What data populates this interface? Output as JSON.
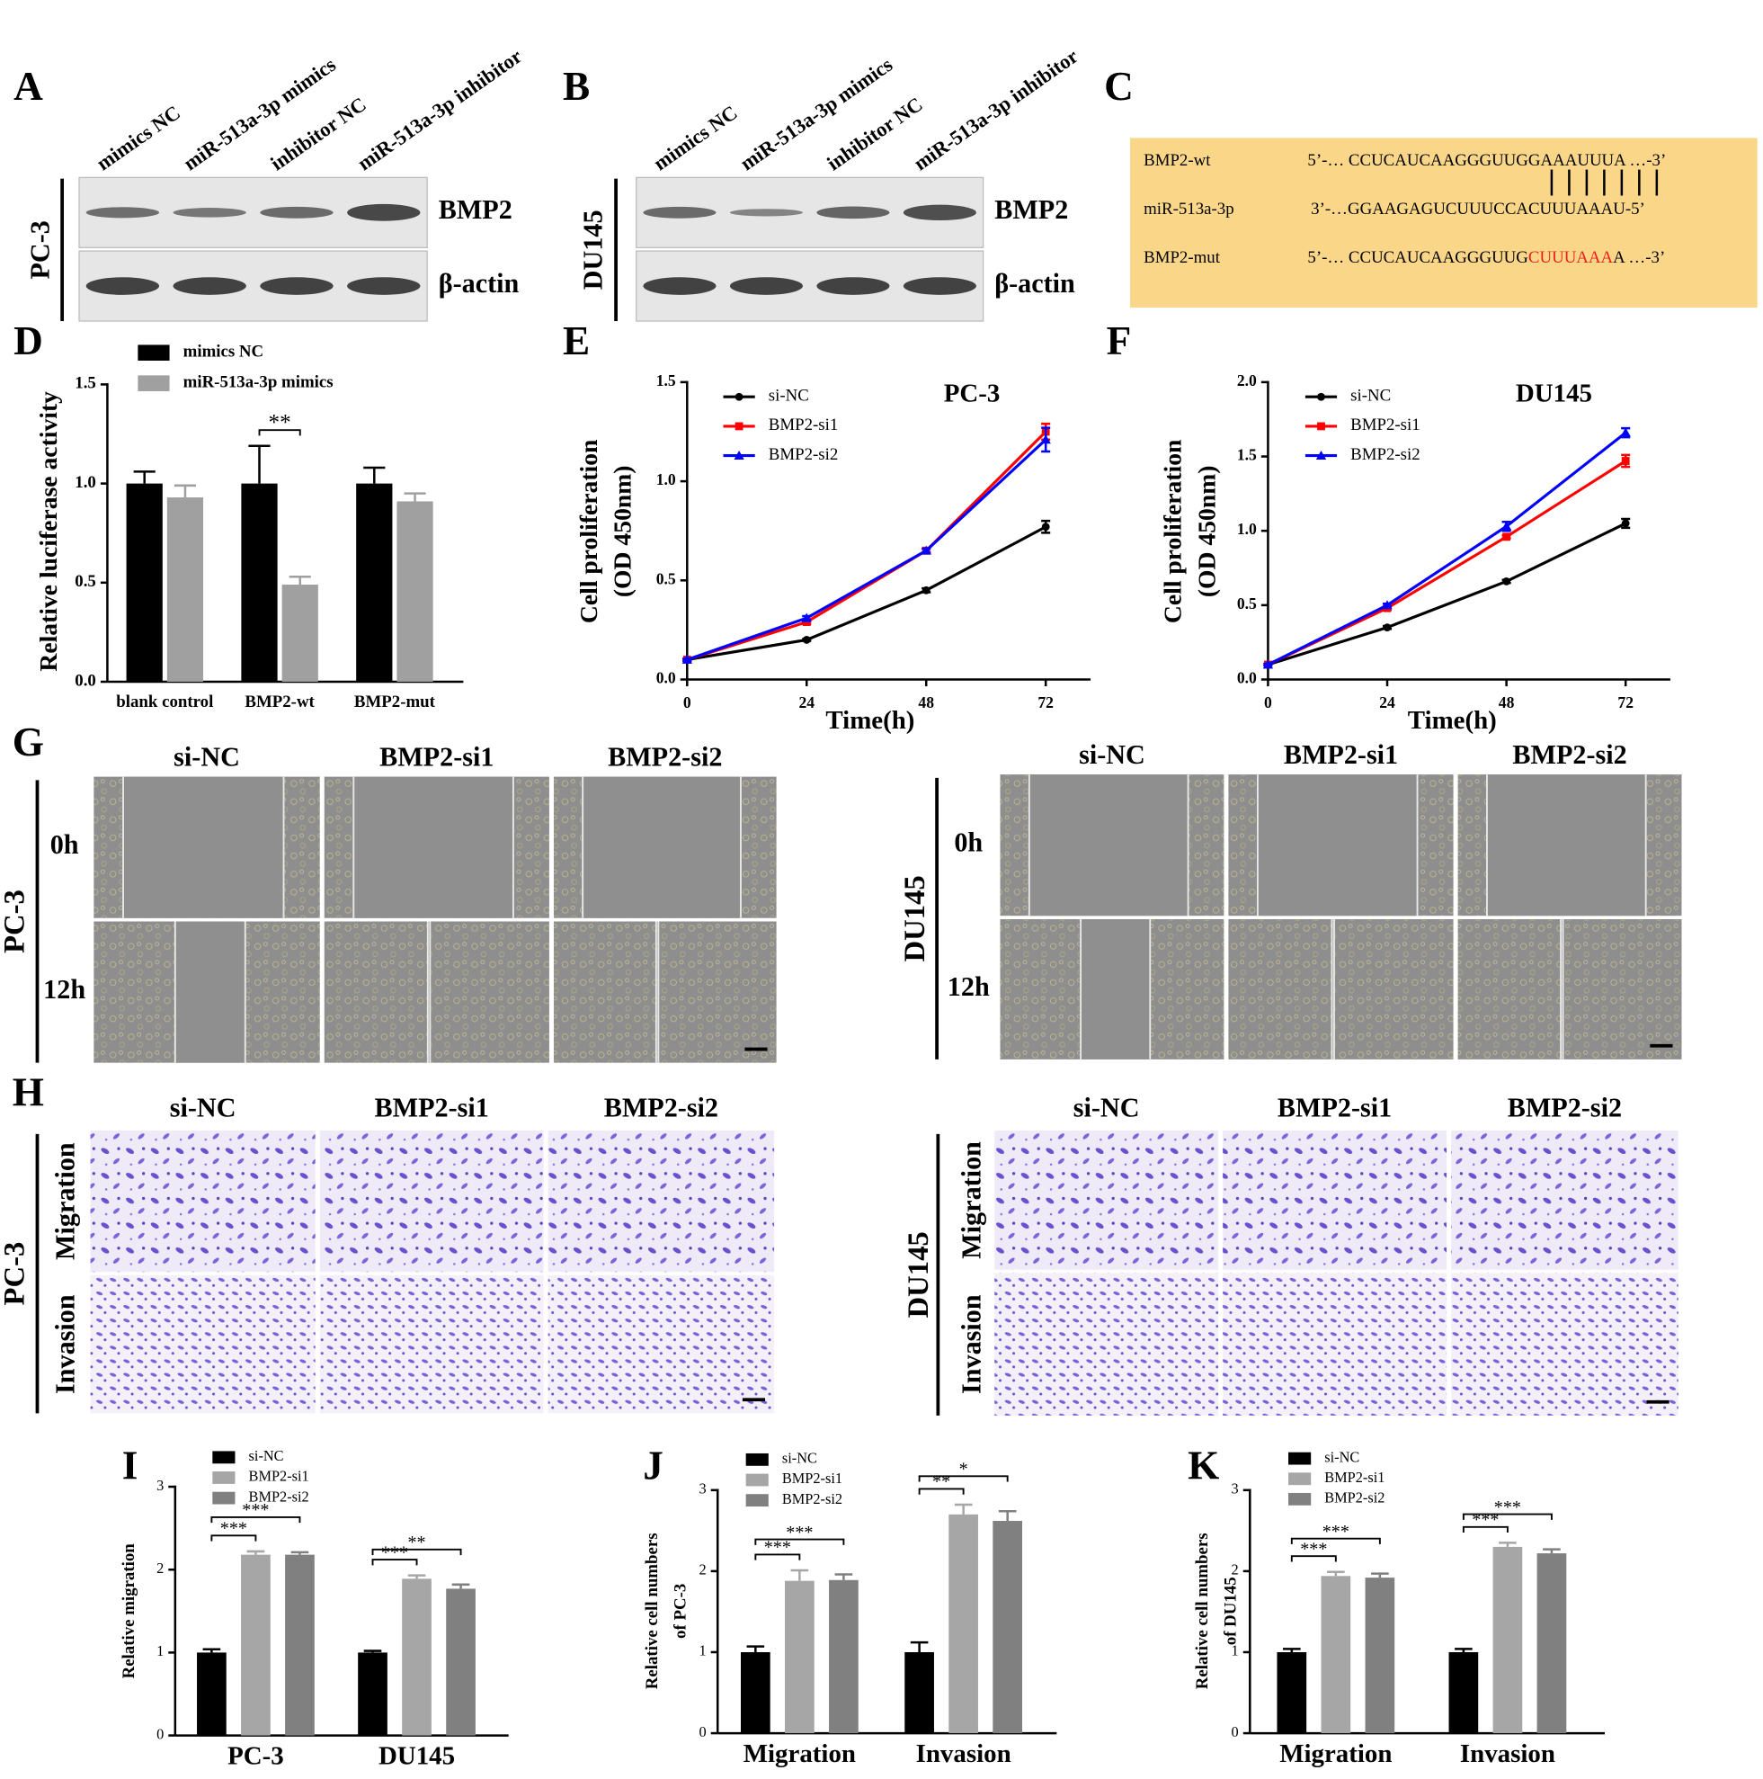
{
  "panel_labels": [
    "A",
    "B",
    "C",
    "D",
    "E",
    "F",
    "G",
    "H",
    "I",
    "J",
    "K"
  ],
  "blots": [
    {
      "cell_line": "PC-3",
      "lanes": [
        "mimics NC",
        "miR-513a-3p mimics",
        "inhibitor NC",
        "miR-513a-3p inhibitor"
      ],
      "proteins": [
        "BMP2",
        "β-actin"
      ]
    },
    {
      "cell_line": "DU145",
      "lanes": [
        "mimics NC",
        "miR-513a-3p mimics",
        "inhibitor NC",
        "miR-513a-3p inhibitor"
      ],
      "proteins": [
        "BMP2",
        "β-actin"
      ]
    }
  ],
  "sequence": {
    "rows": [
      {
        "name": "BMP2-wt",
        "seq": "5’-… CCUCAUCAAGGGUUGGAAAUUUA …-3’"
      },
      {
        "name": "miR-513a-3p",
        "seq": "3’-…GGAAGAGUCUUUCCACUUUAAAU-5’"
      },
      {
        "name": "BMP2-mut",
        "seq": "5’-… CCUCAUCAAGGGUUG",
        "highlight": "CUUUAAA",
        "seq_end": "A …-3’"
      }
    ]
  },
  "wound": {
    "columns": [
      "si-NC",
      "BMP2-si1",
      "BMP2-si2"
    ],
    "rows": [
      "0h",
      "12h"
    ],
    "cell_lines": [
      "PC-3",
      "DU145"
    ]
  },
  "transwell": {
    "columns": [
      "si-NC",
      "BMP2-si1",
      "BMP2-si2"
    ],
    "rows": [
      "Migration",
      "Invasion"
    ],
    "cell_lines": [
      "PC-3",
      "DU145"
    ]
  },
  "chart_data": [
    {
      "type": "bar",
      "ylabel": "Relative luciferase activity",
      "categories": [
        "blank control",
        "BMP2-wt",
        "BMP2-mut"
      ],
      "series": [
        {
          "name": "mimics NC",
          "color": "#000000",
          "values": [
            1.0,
            1.0,
            1.0
          ],
          "errors": [
            0.06,
            0.19,
            0.08
          ]
        },
        {
          "name": "miR-513a-3p mimics",
          "color": "#a0a0a0",
          "values": [
            0.93,
            0.49,
            0.91
          ],
          "errors": [
            0.06,
            0.04,
            0.04
          ]
        }
      ],
      "ylim": [
        0,
        1.5
      ],
      "yticks": [
        {
          "value": 0,
          "label": "0.0"
        },
        {
          "value": 0.5,
          "label": "0.5"
        },
        {
          "value": 1,
          "label": "1.0"
        },
        {
          "value": 1.5,
          "label": "1.5"
        }
      ],
      "annotations": [
        {
          "text": "**",
          "category": 1,
          "series": [
            0,
            1
          ]
        }
      ]
    },
    {
      "type": "line",
      "title": "PC-3",
      "ylabel": [
        "Cell proliferation",
        "(OD 450nm)"
      ],
      "xlabel": "Time(h)",
      "x": [
        0,
        24,
        48,
        72
      ],
      "series": [
        {
          "name": "si-NC",
          "color": "#000000",
          "marker": "circle",
          "values": [
            0.1,
            0.2,
            0.45,
            0.77
          ],
          "errors": [
            0.005,
            0.005,
            0.01,
            0.03
          ]
        },
        {
          "name": "BMP2-si1",
          "color": "#ff0000",
          "marker": "square",
          "values": [
            0.1,
            0.29,
            0.65,
            1.25
          ],
          "errors": [
            0.005,
            0.01,
            0.01,
            0.04
          ]
        },
        {
          "name": "BMP2-si2",
          "color": "#0000ff",
          "marker": "triangle",
          "values": [
            0.1,
            0.31,
            0.65,
            1.21
          ],
          "errors": [
            0.005,
            0.01,
            0.01,
            0.06
          ]
        }
      ],
      "xlim": [
        0,
        81
      ],
      "xticks": [
        0,
        24,
        48,
        72
      ],
      "ylim": [
        0,
        1.5
      ],
      "yticks": [
        {
          "value": 0,
          "label": "0.0"
        },
        {
          "value": 0.5,
          "label": "0.5"
        },
        {
          "value": 1,
          "label": "1.0"
        },
        {
          "value": 1.5,
          "label": "1.5"
        }
      ]
    },
    {
      "type": "line",
      "title": "DU145",
      "ylabel": [
        "Cell proliferation",
        "(OD 450nm)"
      ],
      "xlabel": "Time(h)",
      "x": [
        0,
        24,
        48,
        72
      ],
      "series": [
        {
          "name": "si-NC",
          "color": "#000000",
          "marker": "circle",
          "values": [
            0.1,
            0.35,
            0.66,
            1.05
          ],
          "errors": [
            0.005,
            0.01,
            0.01,
            0.03
          ]
        },
        {
          "name": "BMP2-si1",
          "color": "#ff0000",
          "marker": "square",
          "values": [
            0.1,
            0.48,
            0.96,
            1.47
          ],
          "errors": [
            0.005,
            0.01,
            0.01,
            0.04
          ]
        },
        {
          "name": "BMP2-si2",
          "color": "#0000ff",
          "marker": "triangle",
          "values": [
            0.1,
            0.5,
            1.03,
            1.66
          ],
          "errors": [
            0.005,
            0.01,
            0.03,
            0.03
          ]
        }
      ],
      "xlim": [
        0,
        81
      ],
      "xticks": [
        0,
        24,
        48,
        72
      ],
      "ylim": [
        0,
        2
      ],
      "yticks": [
        {
          "value": 0,
          "label": "0.0"
        },
        {
          "value": 0.5,
          "label": "0.5"
        },
        {
          "value": 1,
          "label": "1.0"
        },
        {
          "value": 1.5,
          "label": "1.5"
        },
        {
          "value": 2,
          "label": "2.0"
        }
      ]
    },
    {
      "type": "bar",
      "ylabel": "Relative migration",
      "categories": [
        "PC-3",
        "DU145"
      ],
      "series": [
        {
          "name": "si-NC",
          "color": "#000000",
          "values": [
            1.0,
            1.0
          ],
          "errors": [
            0.04,
            0.02
          ]
        },
        {
          "name": "BMP2-si1",
          "color": "#a6a6a6",
          "values": [
            2.18,
            1.89
          ],
          "errors": [
            0.04,
            0.04
          ]
        },
        {
          "name": "BMP2-si2",
          "color": "#808080",
          "values": [
            2.18,
            1.77
          ],
          "errors": [
            0.03,
            0.05
          ]
        }
      ],
      "ylim": [
        0,
        3
      ],
      "yticks": [
        0,
        1,
        2,
        3
      ],
      "annotations": [
        {
          "text": "***",
          "category": 0,
          "series": [
            0,
            1
          ]
        },
        {
          "text": "***",
          "category": 0,
          "series": [
            0,
            2
          ]
        },
        {
          "text": "***",
          "category": 1,
          "series": [
            0,
            1
          ]
        },
        {
          "text": "**",
          "category": 1,
          "series": [
            0,
            2
          ]
        }
      ]
    },
    {
      "type": "bar",
      "ylabel": [
        "Relative cell numbers",
        "of PC-3"
      ],
      "categories": [
        "Migration",
        "Invasion"
      ],
      "series": [
        {
          "name": "si-NC",
          "color": "#000000",
          "values": [
            1.0,
            1.0
          ],
          "errors": [
            0.07,
            0.12
          ]
        },
        {
          "name": "BMP2-si1",
          "color": "#a6a6a6",
          "values": [
            1.88,
            2.7
          ],
          "errors": [
            0.13,
            0.12
          ]
        },
        {
          "name": "BMP2-si2",
          "color": "#808080",
          "values": [
            1.89,
            2.62
          ],
          "errors": [
            0.07,
            0.12
          ]
        }
      ],
      "ylim": [
        0,
        3
      ],
      "yticks": [
        0,
        1,
        2,
        3
      ],
      "annotations": [
        {
          "text": "***",
          "category": 0,
          "series": [
            0,
            1
          ]
        },
        {
          "text": "***",
          "category": 0,
          "series": [
            0,
            2
          ]
        },
        {
          "text": "**",
          "category": 1,
          "series": [
            0,
            1
          ]
        },
        {
          "text": "*",
          "category": 1,
          "series": [
            0,
            2
          ]
        }
      ]
    },
    {
      "type": "bar",
      "ylabel": [
        "Relative cell numbers",
        "of DU145"
      ],
      "categories": [
        "Migration",
        "Invasion"
      ],
      "series": [
        {
          "name": "si-NC",
          "color": "#000000",
          "values": [
            1.0,
            1.0
          ],
          "errors": [
            0.04,
            0.04
          ]
        },
        {
          "name": "BMP2-si1",
          "color": "#a6a6a6",
          "values": [
            1.94,
            2.3
          ],
          "errors": [
            0.05,
            0.05
          ]
        },
        {
          "name": "BMP2-si2",
          "color": "#808080",
          "values": [
            1.92,
            2.22
          ],
          "errors": [
            0.05,
            0.05
          ]
        }
      ],
      "ylim": [
        0,
        3
      ],
      "yticks": [
        0,
        1,
        2,
        3
      ],
      "annotations": [
        {
          "text": "***",
          "category": 0,
          "series": [
            0,
            1
          ]
        },
        {
          "text": "***",
          "category": 0,
          "series": [
            0,
            2
          ]
        },
        {
          "text": "***",
          "category": 1,
          "series": [
            0,
            1
          ]
        },
        {
          "text": "***",
          "category": 1,
          "series": [
            0,
            2
          ]
        }
      ]
    }
  ]
}
